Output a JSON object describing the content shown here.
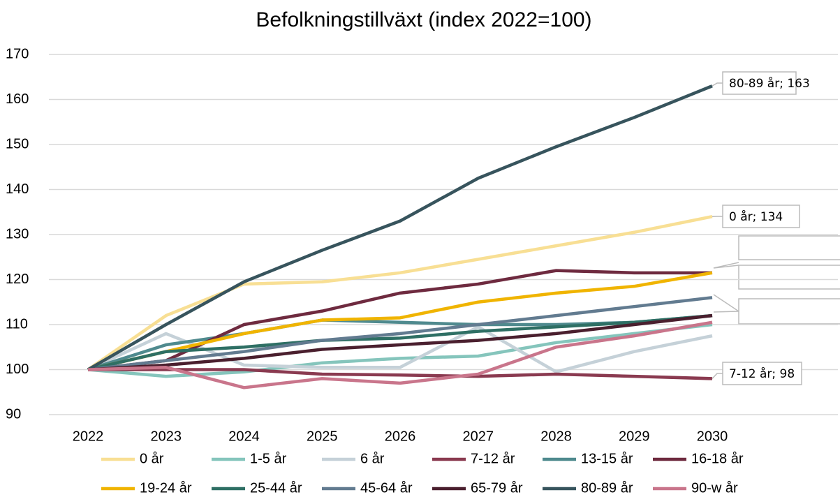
{
  "chart_data": {
    "type": "line",
    "title": "Befolkningstillväxt (index 2022=100)",
    "categories": [
      "2022",
      "2023",
      "2024",
      "2025",
      "2026",
      "2027",
      "2028",
      "2029",
      "2030"
    ],
    "ylim": [
      90,
      170
    ],
    "yticks": [
      90,
      100,
      110,
      120,
      130,
      140,
      150,
      160,
      170
    ],
    "grid": true,
    "series": [
      {
        "name": "0 år",
        "color": "#f8df94",
        "values": [
          100,
          112,
          119,
          119.5,
          121.5,
          124.5,
          127.5,
          130.5,
          134
        ]
      },
      {
        "name": "1-5 år",
        "color": "#85c5bc",
        "values": [
          100,
          98.5,
          99.5,
          101.5,
          102.5,
          103,
          106,
          108,
          110
        ]
      },
      {
        "name": "6 år",
        "color": "#c5d1d8",
        "values": [
          100,
          108,
          101,
          100.5,
          100.5,
          109.5,
          99.5,
          104,
          107.5
        ]
      },
      {
        "name": "7-12 år",
        "color": "#8a3a50",
        "values": [
          100,
          100,
          100,
          99,
          98.8,
          98.5,
          99,
          98.5,
          98
        ]
      },
      {
        "name": "13-15 år",
        "color": "#4f8a8e",
        "values": [
          100,
          105.5,
          108,
          111,
          110.5,
          110,
          110,
          110.5,
          112
        ]
      },
      {
        "name": "16-18 år",
        "color": "#6e2a3f",
        "values": [
          100,
          102,
          110,
          113,
          117,
          119,
          122,
          121.5,
          121.5
        ]
      },
      {
        "name": "19-24 år",
        "color": "#f0b400",
        "values": [
          100,
          104,
          108,
          111,
          111.5,
          115,
          117,
          118.5,
          121.5
        ]
      },
      {
        "name": "25-44 år",
        "color": "#2e6f64",
        "values": [
          100,
          104,
          105,
          106.5,
          107,
          108.5,
          109.5,
          110.5,
          112
        ]
      },
      {
        "name": "45-64 år",
        "color": "#627b90",
        "values": [
          100,
          102,
          104,
          106.5,
          108,
          110,
          112,
          114,
          116
        ]
      },
      {
        "name": "65-79 år",
        "color": "#4a1f2e",
        "values": [
          100,
          101,
          102.5,
          104.5,
          105.5,
          106.5,
          108,
          110,
          112
        ]
      },
      {
        "name": "80-89 år",
        "color": "#37545d",
        "values": [
          100,
          110,
          119.5,
          126.5,
          133,
          142.5,
          149.5,
          156,
          163
        ]
      },
      {
        "name": "90-w år",
        "color": "#c9758b",
        "values": [
          100,
          100.5,
          96,
          98,
          97,
          99,
          105,
          107.5,
          110.5
        ]
      }
    ],
    "annotations": [
      "80-89 år; 163",
      "0 år; 134",
      "7-12 år; 98"
    ]
  }
}
